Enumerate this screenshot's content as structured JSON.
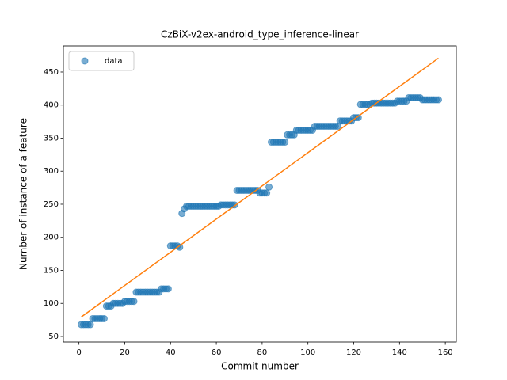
{
  "chart_data": {
    "type": "scatter",
    "title": "CzBiX-v2ex-android_type_inference-linear",
    "x_label": "Commit number",
    "y_label": "Number of instance of a feature",
    "xlim": [
      -6.8,
      164.8
    ],
    "ylim": [
      41.6,
      489.5
    ],
    "xticks": [
      0,
      20,
      40,
      60,
      80,
      100,
      120,
      140,
      160
    ],
    "yticks": [
      50,
      100,
      150,
      200,
      250,
      300,
      350,
      400,
      450
    ],
    "legend": "upper left",
    "series": [
      {
        "name": "data",
        "color": "#1f77b4",
        "kind": "marker",
        "x": [
          1,
          2,
          3,
          4,
          5,
          6,
          7,
          8,
          9,
          10,
          11,
          12,
          13,
          14,
          15,
          16,
          17,
          18,
          19,
          20,
          21,
          22,
          23,
          24,
          25,
          26,
          27,
          28,
          29,
          30,
          31,
          32,
          33,
          34,
          35,
          36,
          37,
          38,
          39,
          40,
          41,
          42,
          43,
          44,
          45,
          46,
          47,
          48,
          49,
          50,
          51,
          52,
          53,
          54,
          55,
          56,
          57,
          58,
          59,
          60,
          61,
          62,
          63,
          64,
          65,
          66,
          67,
          68,
          69,
          70,
          71,
          72,
          73,
          74,
          75,
          76,
          77,
          78,
          79,
          80,
          81,
          82,
          83,
          84,
          85,
          86,
          87,
          88,
          89,
          90,
          91,
          92,
          93,
          94,
          95,
          96,
          97,
          98,
          99,
          100,
          101,
          102,
          103,
          104,
          105,
          106,
          107,
          108,
          109,
          110,
          111,
          112,
          113,
          114,
          115,
          116,
          117,
          118,
          119,
          120,
          121,
          122,
          123,
          124,
          125,
          126,
          127,
          128,
          129,
          130,
          131,
          132,
          133,
          134,
          135,
          136,
          137,
          138,
          139,
          140,
          141,
          142,
          143,
          144,
          145,
          146,
          147,
          148,
          149,
          150,
          151,
          152,
          153,
          154,
          155,
          156,
          157
        ],
        "values": [
          68,
          68,
          68,
          68,
          68,
          77,
          77,
          77,
          77,
          77,
          77,
          96,
          96,
          96,
          100,
          100,
          100,
          100,
          100,
          103,
          103,
          103,
          103,
          103,
          117,
          117,
          117,
          117,
          117,
          117,
          117,
          117,
          117,
          117,
          117,
          122,
          122,
          122,
          122,
          187,
          187,
          187,
          187,
          185,
          236,
          243,
          247,
          247,
          247,
          247,
          247,
          247,
          247,
          247,
          247,
          247,
          247,
          247,
          247,
          247,
          247,
          249,
          249,
          249,
          249,
          249,
          249,
          249,
          271,
          271,
          271,
          271,
          271,
          271,
          271,
          271,
          271,
          271,
          267,
          267,
          267,
          267,
          276,
          344,
          344,
          344,
          344,
          344,
          344,
          344,
          355,
          355,
          355,
          355,
          362,
          362,
          362,
          362,
          362,
          362,
          362,
          362,
          368,
          368,
          368,
          368,
          368,
          368,
          368,
          368,
          368,
          368,
          368,
          376,
          376,
          376,
          376,
          376,
          376,
          381,
          381,
          381,
          401,
          401,
          401,
          401,
          401,
          403,
          403,
          403,
          403,
          403,
          403,
          403,
          403,
          403,
          403,
          403,
          406,
          406,
          406,
          406,
          406,
          411,
          411,
          411,
          411,
          411,
          411,
          408,
          408,
          408,
          408,
          408,
          408,
          408,
          408
        ]
      },
      {
        "color": "#ff7f0e",
        "kind": "line",
        "x": [
          1,
          157
        ],
        "values": [
          79.5,
          471
        ]
      }
    ]
  }
}
